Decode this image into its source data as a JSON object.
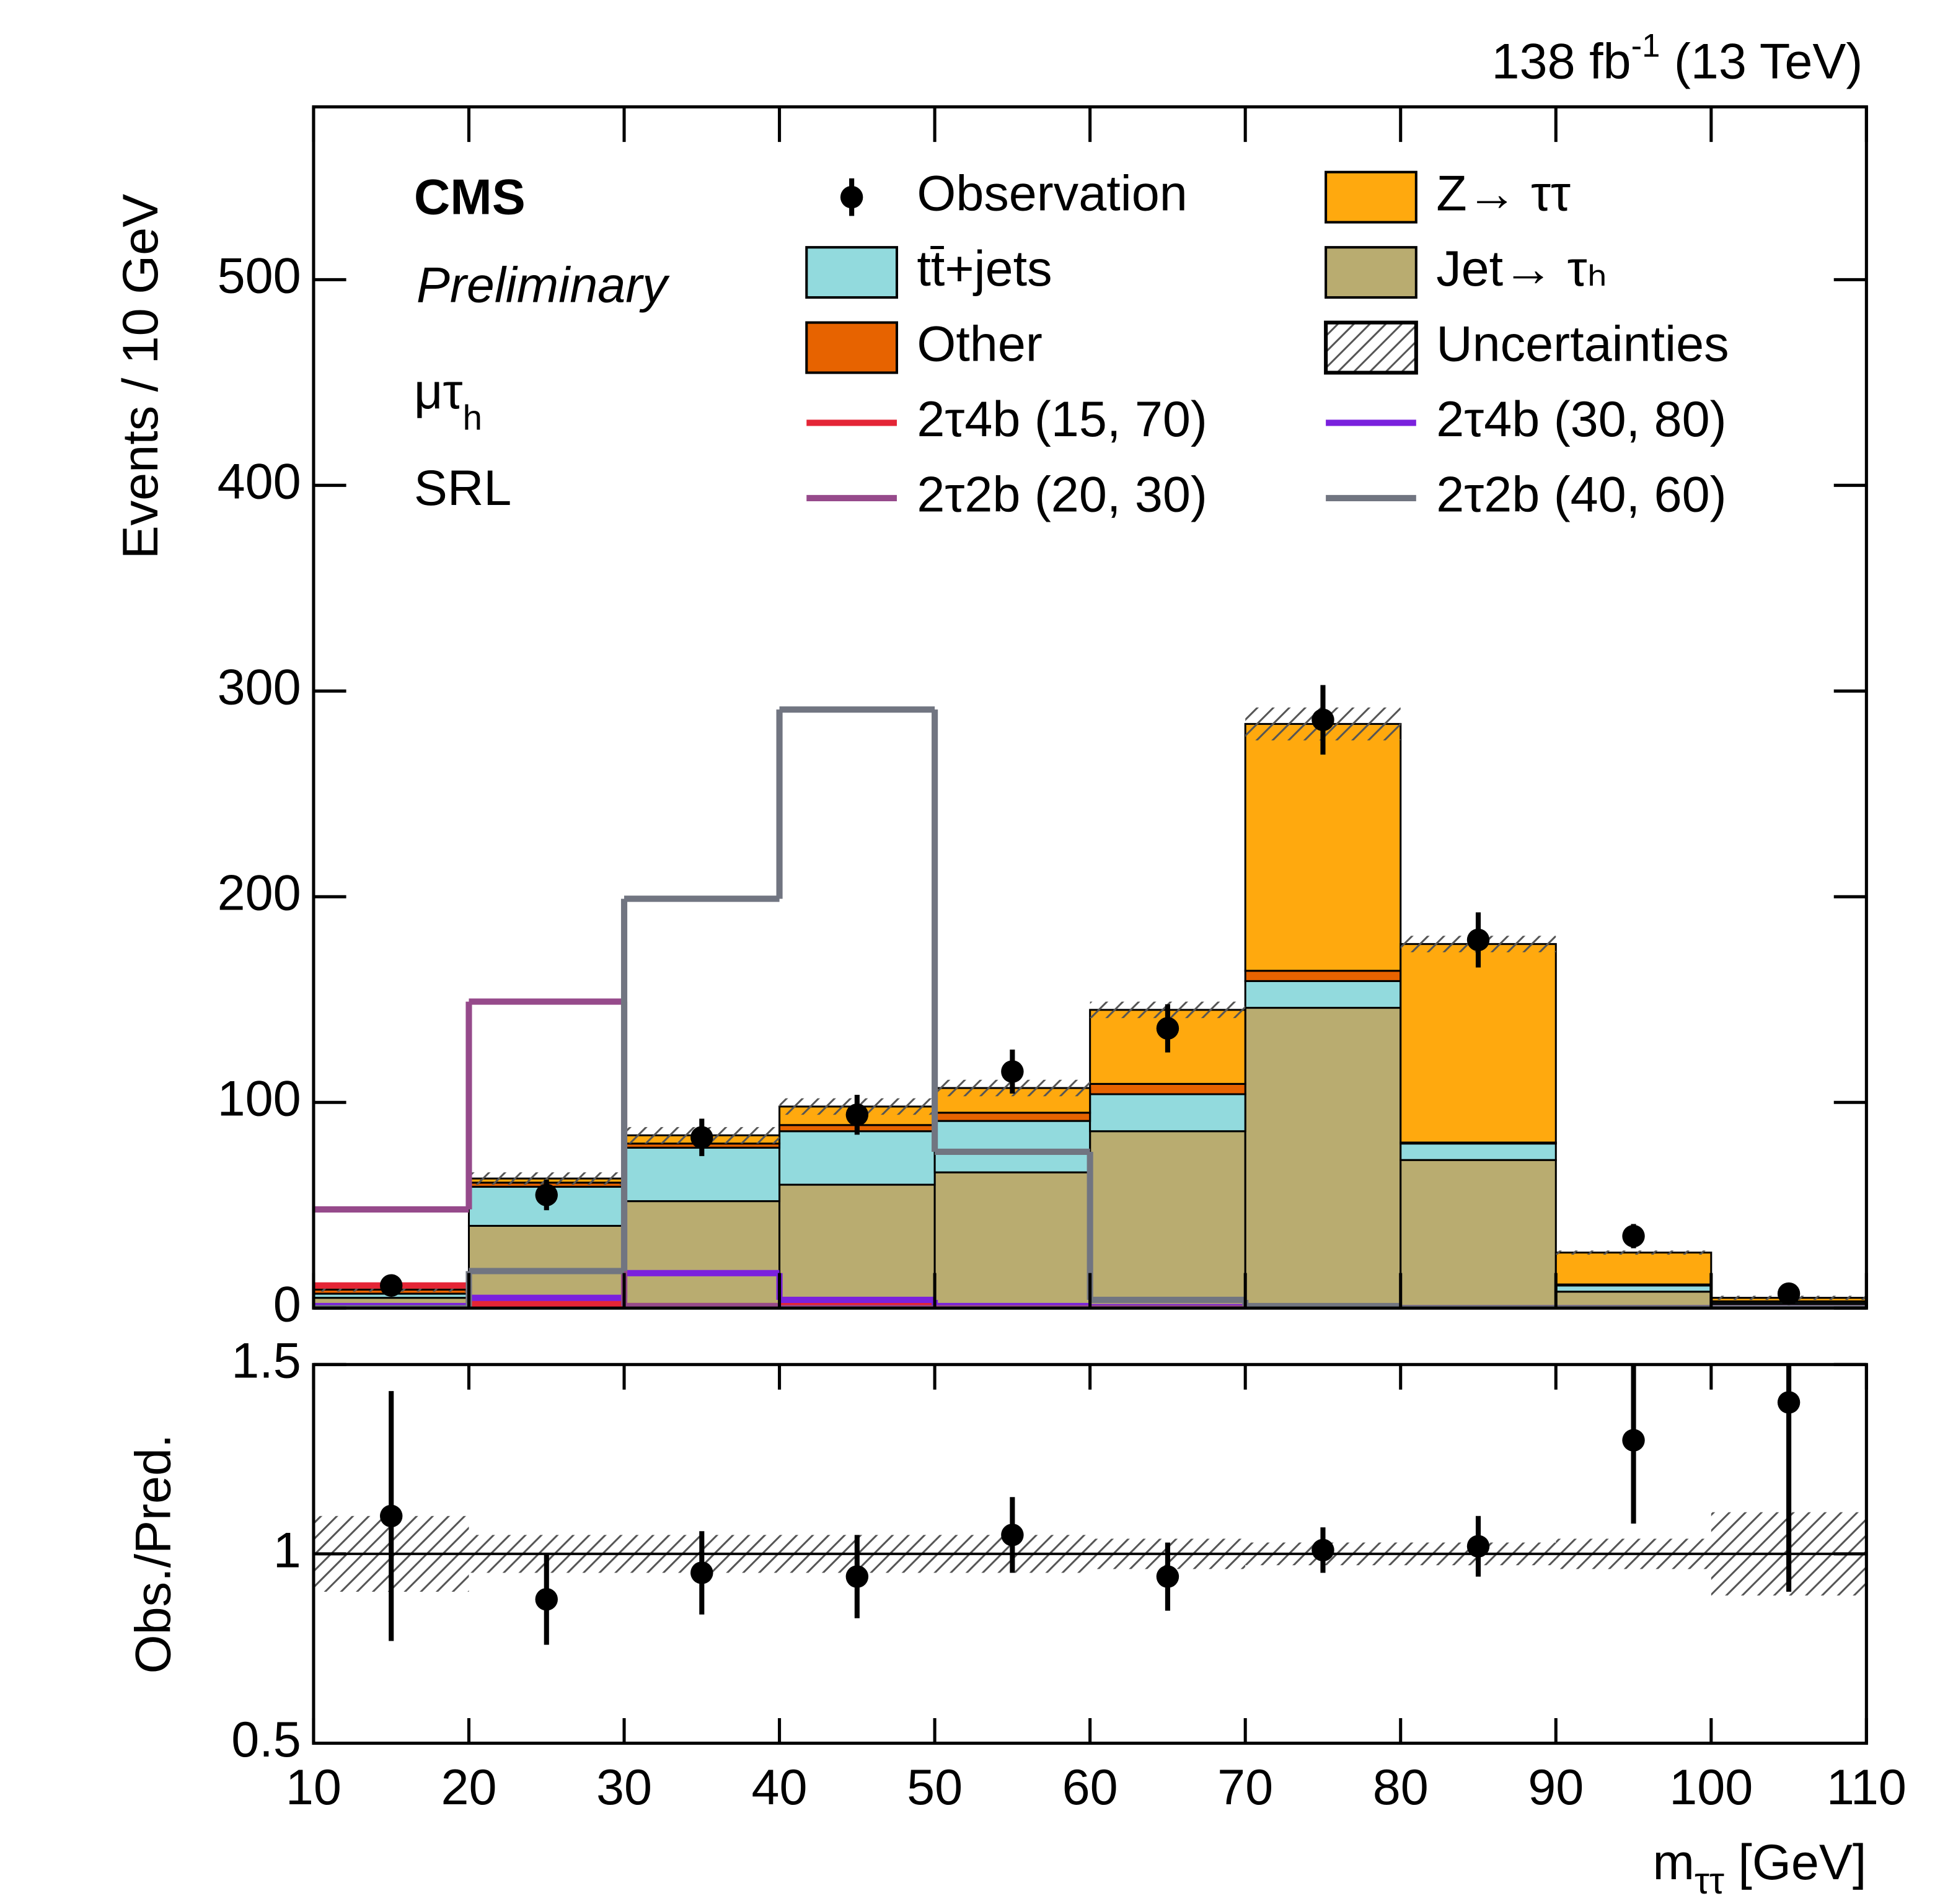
{
  "chart_data": {
    "type": "histogram",
    "lumi": {
      "text": "138 fb",
      "sup": "-1",
      "energy": " (13 TeV)"
    },
    "experiment": "CMS",
    "status": "Preliminary",
    "channel": {
      "main": "μτ",
      "sub": "h"
    },
    "region": "SRL",
    "ylabel": "Events / 10 GeV",
    "xlabel": {
      "main": "m",
      "sub": "ττ",
      "unit": " [GeV]"
    },
    "bins": [
      10,
      20,
      30,
      40,
      50,
      60,
      70,
      80,
      90,
      100,
      110
    ],
    "xlim": [
      10,
      110
    ],
    "xticks": [
      10,
      20,
      30,
      40,
      50,
      60,
      70,
      80,
      90,
      100,
      110
    ],
    "ylim": [
      0,
      584
    ],
    "yticks": [
      0,
      100,
      200,
      300,
      400,
      500
    ],
    "observation": {
      "name": "Observation",
      "color": "#000000",
      "values": [
        11,
        55,
        83,
        94,
        115,
        136,
        286,
        179,
        35,
        7
      ],
      "errors": [
        3.3,
        7.4,
        9.1,
        9.7,
        10.7,
        11.7,
        16.9,
        13.4,
        5.9,
        2.6
      ]
    },
    "stack": [
      {
        "name": "Jet→ τₕ",
        "color": "#b9ac70",
        "values": [
          5,
          40,
          52,
          60,
          66,
          86,
          146,
          72,
          8,
          2
        ]
      },
      {
        "name": "tt̄+jets",
        "color": "#92dadd",
        "values": [
          2,
          19,
          26,
          26,
          25,
          18,
          13,
          8,
          3,
          1
        ]
      },
      {
        "name": "Other",
        "color": "#e76300",
        "values": [
          2,
          2,
          2,
          3,
          4,
          5,
          5,
          0.5,
          0.5,
          0.3
        ]
      },
      {
        "name": "Z→ ττ",
        "color": "#ffa90e",
        "values": [
          1,
          2,
          4,
          9,
          12,
          36,
          120,
          96.5,
          15.5,
          1.7
        ]
      }
    ],
    "uncertainty": {
      "name": "Uncertainties",
      "values": [
        2,
        3,
        4,
        4,
        4,
        4,
        8,
        4,
        1,
        1
      ]
    },
    "signals": [
      {
        "name": "2τ4b (15, 70)",
        "color": "#e42536",
        "values": [
          11,
          2,
          1,
          1,
          0,
          0,
          0,
          0,
          0,
          0
        ]
      },
      {
        "name": "2τ4b (30, 80)",
        "color": "#7a21dd",
        "values": [
          1,
          5,
          17,
          4,
          1,
          0.5,
          0,
          0,
          0,
          0
        ]
      },
      {
        "name": "2τ2b (20, 30)",
        "color": "#964a8b",
        "values": [
          48,
          149,
          1,
          0,
          0,
          0,
          0,
          0,
          0,
          0
        ]
      },
      {
        "name": "2τ2b (40, 60)",
        "color": "#717581",
        "values": [
          0,
          18,
          199,
          291,
          76,
          4,
          1,
          0,
          0,
          0
        ]
      }
    ],
    "ratio": {
      "ylabel": "Obs./Pred.",
      "ylim": [
        0.5,
        1.5
      ],
      "yticks": [
        0.5,
        1,
        1.5
      ],
      "values": [
        1.1,
        0.88,
        0.95,
        0.94,
        1.05,
        0.94,
        1.01,
        1.02,
        1.3,
        1.4
      ],
      "errors": [
        0.33,
        0.12,
        0.11,
        0.11,
        0.1,
        0.09,
        0.06,
        0.08,
        0.22,
        0.5
      ],
      "band": [
        0.1,
        0.05,
        0.05,
        0.05,
        0.05,
        0.04,
        0.03,
        0.03,
        0.04,
        0.11
      ]
    }
  }
}
